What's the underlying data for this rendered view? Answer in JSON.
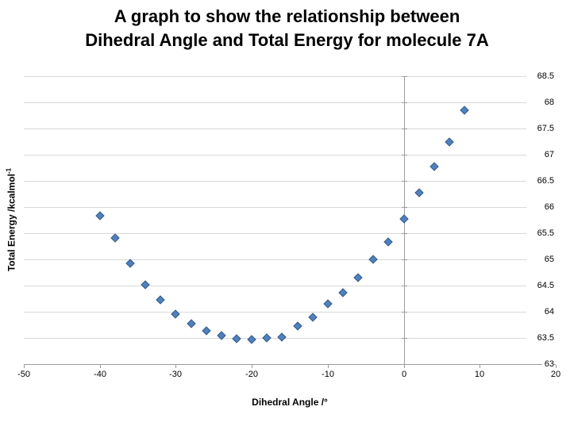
{
  "chart_data": {
    "type": "scatter",
    "title": "A graph to show the relationship between Dihedral Angle and Total Energy for molecule 7A",
    "title_lines": [
      "A graph to show the relationship between",
      "Dihedral Angle and Total Energy for molecule 7A"
    ],
    "xlabel": "Dihedral Angle /°",
    "ylabel": "Total Energy /kcalmol-1",
    "ylabel_base": "Total Energy /kcalmol",
    "ylabel_superscript": "-1",
    "xlim": [
      -50,
      20
    ],
    "ylim": [
      63,
      68.5
    ],
    "x_ticks": [
      -50,
      -40,
      -30,
      -20,
      -10,
      0,
      10,
      20
    ],
    "y_ticks": [
      63,
      63.5,
      64,
      64.5,
      65,
      65.5,
      66,
      66.5,
      67,
      67.5,
      68,
      68.5
    ],
    "grid": "horizontal-only",
    "legend": "none",
    "y_axis_label_side": "right",
    "value_axis_crosses_x_at": 0,
    "marker": {
      "shape": "diamond",
      "fill": "#4F81BD",
      "border": "#385D8A"
    },
    "colors": {
      "gridline": "#D9D9D9",
      "axis": "#9B9B9B",
      "text": "#000000"
    },
    "series": [
      {
        "name": "Total Energy vs Dihedral Angle",
        "points": [
          [
            -40,
            65.84
          ],
          [
            -38,
            65.41
          ],
          [
            -36,
            64.93
          ],
          [
            -34,
            64.52
          ],
          [
            -32,
            64.22
          ],
          [
            -30,
            63.96
          ],
          [
            -28,
            63.78
          ],
          [
            -26,
            63.63
          ],
          [
            -24,
            63.54
          ],
          [
            -22,
            63.49
          ],
          [
            -20,
            63.47
          ],
          [
            -18,
            63.5
          ],
          [
            -16,
            63.51
          ],
          [
            -14,
            63.72
          ],
          [
            -12,
            63.89
          ],
          [
            -10,
            64.15
          ],
          [
            -8,
            64.37
          ],
          [
            -6,
            64.65
          ],
          [
            -4,
            65.0
          ],
          [
            -2,
            65.33
          ],
          [
            0,
            65.77
          ],
          [
            2,
            66.27
          ],
          [
            4,
            66.77
          ],
          [
            6,
            67.25
          ],
          [
            8,
            67.85
          ]
        ]
      }
    ]
  }
}
